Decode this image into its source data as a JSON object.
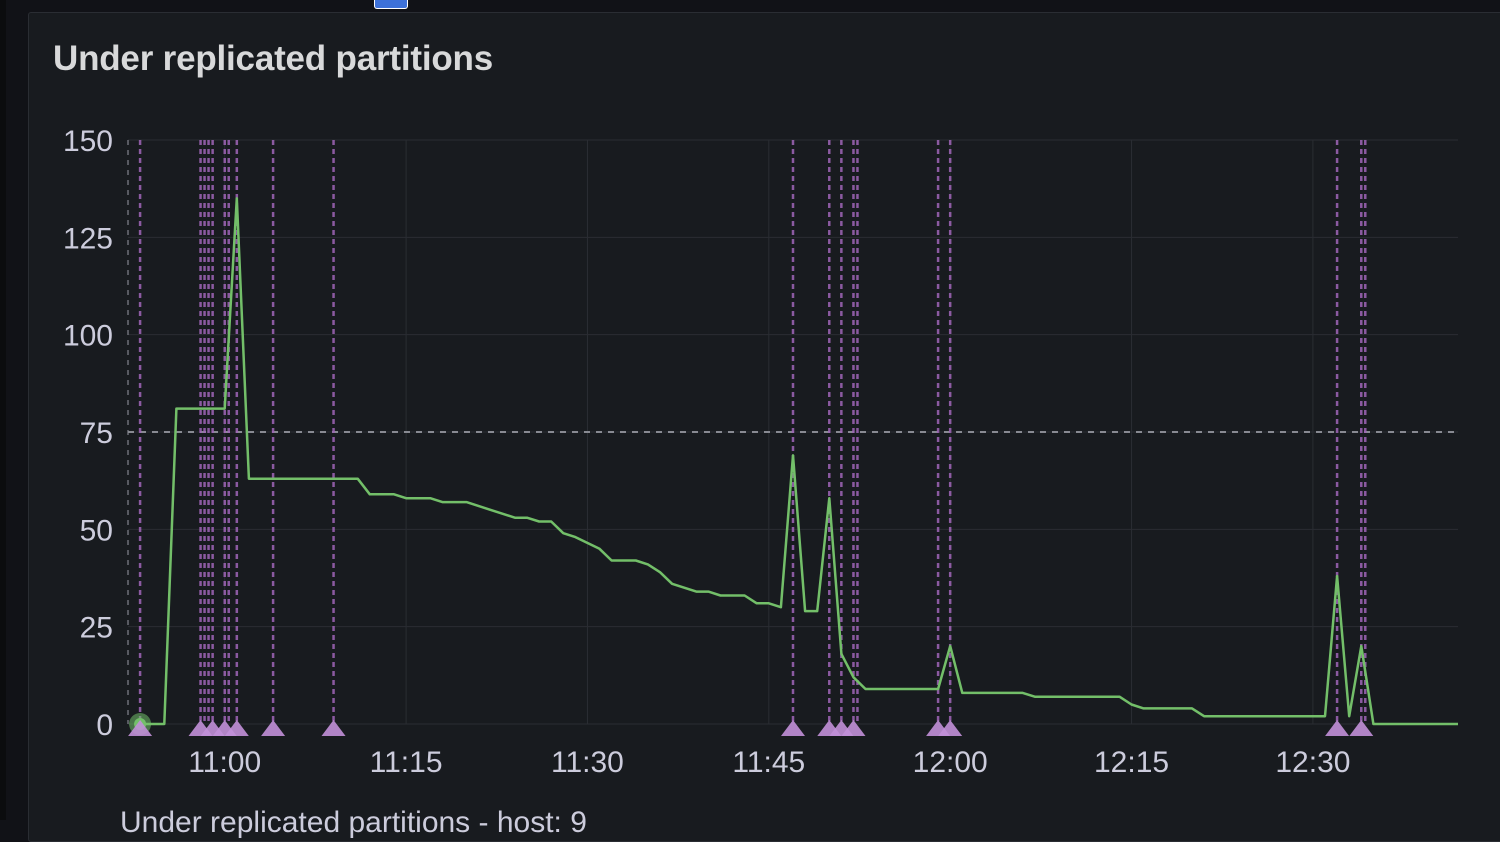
{
  "panel": {
    "title": "Under replicated partitions",
    "legend_label": "Under replicated partitions - host: 9"
  },
  "colors": {
    "background": "#111217",
    "panel": "#181b1f",
    "series": "#73bf69",
    "annotation": "#a065b8",
    "annotation_marker": "#c290d8",
    "grid": "#2a2d33",
    "threshold": "#888a92",
    "text": "#ccccdc"
  },
  "chart_data": {
    "type": "line",
    "title": "Under replicated partitions",
    "x_unit": "minutes",
    "xlim": [
      "10:52",
      "12:42"
    ],
    "ylim": [
      0,
      150
    ],
    "yticks": [
      0,
      25,
      50,
      75,
      100,
      125,
      150
    ],
    "yticklabels": [
      "0",
      "25",
      "50",
      "75",
      "100",
      "125",
      "150"
    ],
    "xticks": [
      "11:00",
      "11:15",
      "11:30",
      "11:45",
      "12:00",
      "12:15",
      "12:30"
    ],
    "grid": true,
    "threshold": 75,
    "series": [
      {
        "name": "Under replicated partitions - host: 9",
        "points": [
          [
            "10:53",
            0
          ],
          [
            "10:55",
            0
          ],
          [
            "10:56",
            81
          ],
          [
            "11:00",
            81
          ],
          [
            "11:01",
            135
          ],
          [
            "11:02",
            63
          ],
          [
            "11:11",
            63
          ],
          [
            "11:12",
            59
          ],
          [
            "11:14",
            59
          ],
          [
            "11:15",
            58
          ],
          [
            "11:17",
            58
          ],
          [
            "11:18",
            57
          ],
          [
            "11:20",
            57
          ],
          [
            "11:22",
            55
          ],
          [
            "11:24",
            53
          ],
          [
            "11:25",
            53
          ],
          [
            "11:26",
            52
          ],
          [
            "11:27",
            52
          ],
          [
            "11:28",
            49
          ],
          [
            "11:29",
            48
          ],
          [
            "11:31",
            45
          ],
          [
            "11:32",
            42
          ],
          [
            "11:34",
            42
          ],
          [
            "11:35",
            41
          ],
          [
            "11:36",
            39
          ],
          [
            "11:37",
            36
          ],
          [
            "11:39",
            34
          ],
          [
            "11:40",
            34
          ],
          [
            "11:41",
            33
          ],
          [
            "11:43",
            33
          ],
          [
            "11:44",
            31
          ],
          [
            "11:45",
            31
          ],
          [
            "11:46",
            30
          ],
          [
            "11:47",
            69
          ],
          [
            "11:48",
            29
          ],
          [
            "11:49",
            29
          ],
          [
            "11:50",
            58
          ],
          [
            "11:51",
            18
          ],
          [
            "11:52",
            12
          ],
          [
            "11:53",
            9
          ],
          [
            "11:59",
            9
          ],
          [
            "12:00",
            20
          ],
          [
            "12:01",
            8
          ],
          [
            "12:06",
            8
          ],
          [
            "12:07",
            7
          ],
          [
            "12:14",
            7
          ],
          [
            "12:15",
            5
          ],
          [
            "12:16",
            4
          ],
          [
            "12:20",
            4
          ],
          [
            "12:21",
            2
          ],
          [
            "12:31",
            2
          ],
          [
            "12:32",
            38
          ],
          [
            "12:33",
            2
          ],
          [
            "12:34",
            20
          ],
          [
            "12:35",
            0
          ],
          [
            "12:42",
            0
          ]
        ]
      }
    ],
    "annotations": [
      "10:53",
      "10:58",
      "10:58",
      "10:58",
      "10:59",
      "11:00",
      "11:00",
      "11:01",
      "11:04",
      "11:09",
      "11:47",
      "11:50",
      "11:51",
      "11:52",
      "11:52",
      "11:59",
      "12:00",
      "12:32",
      "12:34",
      "12:34"
    ]
  }
}
